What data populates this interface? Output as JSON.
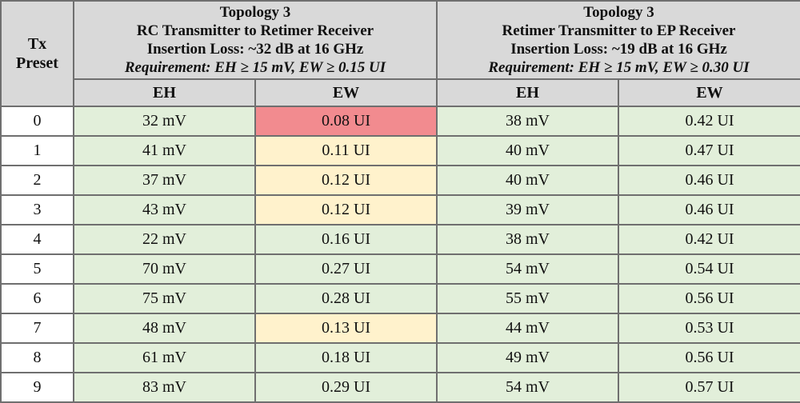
{
  "chart_data": {
    "type": "table",
    "preset_header": "Tx\nPreset",
    "groups": [
      {
        "title": "Topology 3",
        "subtitle": "RC Transmitter to Retimer Receiver",
        "loss": "Insertion Loss: ~32 dB at 16 GHz",
        "requirement": "Requirement: EH ≥ 15 mV, EW ≥ 0.15 UI",
        "eh_label": "EH",
        "ew_label": "EW"
      },
      {
        "title": "Topology 3",
        "subtitle": "Retimer Transmitter to EP Receiver",
        "loss": "Insertion Loss: ~19 dB at 16 GHz",
        "requirement": "Requirement: EH ≥ 15 mV, EW ≥ 0.30 UI",
        "eh_label": "EH",
        "ew_label": "EW"
      }
    ],
    "status_colors": {
      "good": "#e2efda",
      "warn": "#fff2cc",
      "fail": "#f28b8f"
    },
    "rows": [
      {
        "preset": "0",
        "eh1": "32 mV",
        "ew1": "0.08 UI",
        "ew1_status": "fail",
        "eh2": "38 mV",
        "ew2": "0.42 UI"
      },
      {
        "preset": "1",
        "eh1": "41 mV",
        "ew1": "0.11 UI",
        "ew1_status": "warn",
        "eh2": "40 mV",
        "ew2": "0.47 UI"
      },
      {
        "preset": "2",
        "eh1": "37 mV",
        "ew1": "0.12 UI",
        "ew1_status": "warn",
        "eh2": "40 mV",
        "ew2": "0.46 UI"
      },
      {
        "preset": "3",
        "eh1": "43 mV",
        "ew1": "0.12 UI",
        "ew1_status": "warn",
        "eh2": "39 mV",
        "ew2": "0.46 UI"
      },
      {
        "preset": "4",
        "eh1": "22 mV",
        "ew1": "0.16 UI",
        "ew1_status": "good",
        "eh2": "38 mV",
        "ew2": "0.42 UI"
      },
      {
        "preset": "5",
        "eh1": "70 mV",
        "ew1": "0.27 UI",
        "ew1_status": "good",
        "eh2": "54 mV",
        "ew2": "0.54 UI"
      },
      {
        "preset": "6",
        "eh1": "75 mV",
        "ew1": "0.28 UI",
        "ew1_status": "good",
        "eh2": "55 mV",
        "ew2": "0.56 UI"
      },
      {
        "preset": "7",
        "eh1": "48 mV",
        "ew1": "0.13 UI",
        "ew1_status": "warn",
        "eh2": "44 mV",
        "ew2": "0.53 UI"
      },
      {
        "preset": "8",
        "eh1": "61 mV",
        "ew1": "0.18 UI",
        "ew1_status": "good",
        "eh2": "49 mV",
        "ew2": "0.56 UI"
      },
      {
        "preset": "9",
        "eh1": "83 mV",
        "ew1": "0.29 UI",
        "ew1_status": "good",
        "eh2": "54 mV",
        "ew2": "0.57 UI"
      }
    ]
  }
}
